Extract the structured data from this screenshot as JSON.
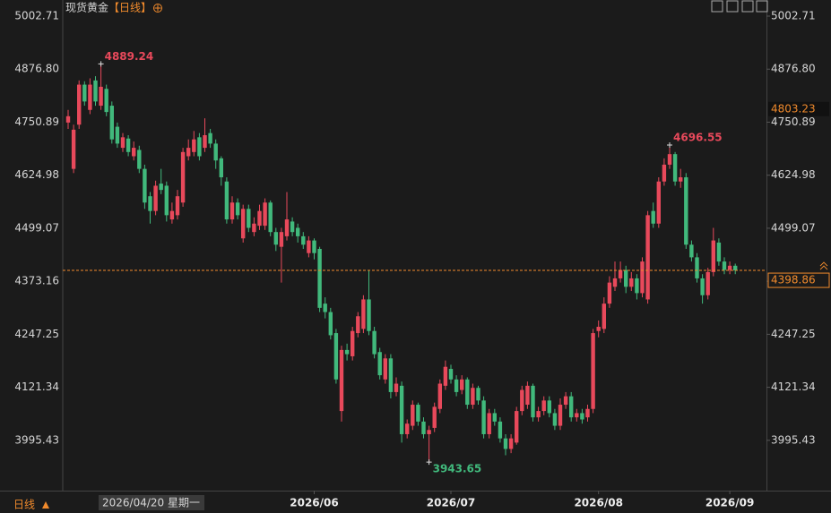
{
  "chart_data": {
    "type": "candlestick",
    "title": "现货黄金",
    "period_label": "【日线】",
    "bottom_period": "日线",
    "crosshair": {
      "date": "2026/04/20 星期一",
      "value": 4803.23
    },
    "last_price": 4398.86,
    "extreme_labels": [
      4889.24,
      4696.55,
      3943.65
    ],
    "up_color": "#e8495b",
    "down_color": "#41b97c",
    "ylim": [
      3876,
      5041
    ],
    "yticks": [
      5002.71,
      {
        "value": 4876.8,
        "label": "4876.80"
      },
      4750.89,
      4624.98,
      4499.07,
      4373.16,
      4247.25,
      4121.34,
      3995.43
    ],
    "categories": [
      null,
      null,
      null,
      null,
      null,
      null,
      null,
      null,
      null,
      null,
      null,
      null,
      null,
      null,
      null,
      null,
      null,
      null,
      null,
      null,
      null,
      null,
      null,
      null,
      null,
      null,
      null,
      null,
      null,
      null,
      null,
      null,
      null,
      null,
      null,
      null,
      null,
      null,
      null,
      null,
      null,
      null,
      null,
      null,
      null,
      "2026/06",
      null,
      null,
      null,
      null,
      null,
      null,
      null,
      null,
      null,
      null,
      null,
      null,
      null,
      null,
      null,
      null,
      null,
      null,
      null,
      null,
      null,
      null,
      null,
      null,
      "2026/07",
      null,
      null,
      null,
      null,
      null,
      null,
      null,
      null,
      null,
      null,
      null,
      null,
      null,
      null,
      null,
      null,
      null,
      null,
      null,
      null,
      null,
      null,
      null,
      null,
      null,
      null,
      "2026/08",
      null,
      null,
      null,
      null,
      null,
      null,
      null,
      null,
      null,
      null,
      null,
      null,
      null,
      null,
      null,
      null,
      null,
      null,
      null,
      null,
      null,
      null,
      null,
      "2026/09",
      null
    ],
    "open": [
      4750,
      4640,
      4745,
      4840,
      4780,
      4850,
      4790,
      4830,
      4790,
      4740,
      4690,
      4712,
      4670,
      4685,
      4640,
      4575,
      4540,
      4605,
      4600,
      4520,
      4530,
      4560,
      4670,
      4680,
      4715,
      4690,
      4725,
      4700,
      4665,
      4610,
      4520,
      4560,
      4475,
      4545,
      4490,
      4505,
      4505,
      4560,
      4490,
      4455,
      4480,
      4515,
      4500,
      4480,
      4440,
      4470,
      4450,
      4320,
      4300,
      4250,
      4065,
      4210,
      4195,
      4250,
      4260,
      4330,
      4255,
      4205,
      4140,
      4190,
      4110,
      4125,
      4010,
      4030,
      4080,
      4040,
      4010,
      4025,
      4070,
      4125,
      4165,
      4140,
      4115,
      4140,
      4080,
      4120,
      4090,
      4010,
      4060,
      4040,
      4000,
      3975,
      3990,
      4065,
      4080,
      4125,
      4050,
      4065,
      4090,
      4060,
      4030,
      4080,
      4100,
      4050,
      4060,
      4050,
      4070,
      4255,
      4260,
      4320,
      4360,
      4380,
      4400,
      4360,
      4380,
      4345,
      4330,
      4540,
      4510,
      4610,
      4650,
      4675,
      4610,
      4620,
      4460,
      4430,
      4380,
      4340,
      4395,
      4465,
      4420,
      4400,
      4410
    ],
    "high": [
      4780,
      4745,
      4850,
      4848,
      4855,
      4860,
      4889.24,
      4840,
      4800,
      4750,
      4725,
      4720,
      4705,
      4695,
      4650,
      4585,
      4612,
      4640,
      4610,
      4560,
      4590,
      4690,
      4710,
      4730,
      4725,
      4760,
      4735,
      4710,
      4670,
      4620,
      4575,
      4570,
      4555,
      4555,
      4525,
      4555,
      4570,
      4565,
      4500,
      4500,
      4585,
      4525,
      4510,
      4490,
      4480,
      4475,
      4455,
      4335,
      4310,
      4260,
      4220,
      4225,
      4265,
      4300,
      4340,
      4400,
      4265,
      4215,
      4200,
      4200,
      4145,
      4135,
      4045,
      4090,
      4085,
      4050,
      4030,
      4085,
      4140,
      4185,
      4175,
      4150,
      4150,
      4145,
      4130,
      4125,
      4100,
      4070,
      4070,
      4050,
      4010,
      4010,
      4075,
      4125,
      4135,
      4130,
      4075,
      4100,
      4100,
      4070,
      4095,
      4110,
      4110,
      4070,
      4070,
      4080,
      4260,
      4280,
      4335,
      4385,
      4420,
      4420,
      4410,
      4395,
      4390,
      4430,
      4540,
      4560,
      4620,
      4665,
      4696.55,
      4680,
      4640,
      4630,
      4470,
      4440,
      4390,
      4405,
      4500,
      4475,
      4430,
      4420,
      4415
    ],
    "low": [
      4735,
      4630,
      4735,
      4790,
      4770,
      4790,
      4780,
      4765,
      4700,
      4690,
      4680,
      4670,
      4660,
      4630,
      4545,
      4510,
      4530,
      4580,
      4515,
      4510,
      4520,
      4550,
      4660,
      4670,
      4660,
      4680,
      4690,
      4640,
      4600,
      4510,
      4510,
      4520,
      4465,
      4490,
      4480,
      4495,
      4495,
      4480,
      4445,
      4370,
      4470,
      4480,
      4465,
      4450,
      4430,
      4425,
      4300,
      4285,
      4235,
      4130,
      4040,
      4185,
      4185,
      4240,
      4250,
      4245,
      4190,
      4140,
      4130,
      4095,
      4100,
      3990,
      4000,
      4020,
      4030,
      4000,
      3943.65,
      4015,
      4060,
      4115,
      4130,
      4100,
      4105,
      4070,
      4070,
      4080,
      4000,
      4000,
      4030,
      3990,
      3960,
      3965,
      3985,
      4055,
      4070,
      4040,
      4040,
      4055,
      4050,
      4020,
      4020,
      4070,
      4040,
      4040,
      4035,
      4040,
      4060,
      4240,
      4250,
      4310,
      4350,
      4370,
      4345,
      4350,
      4330,
      4335,
      4320,
      4500,
      4500,
      4600,
      4640,
      4600,
      4595,
      4450,
      4420,
      4370,
      4320,
      4330,
      4385,
      4410,
      4390,
      4390,
      4390
    ],
    "close": [
      4765,
      4733,
      4840,
      4800,
      4840,
      4800,
      4835,
      4775,
      4710,
      4700,
      4715,
      4680,
      4690,
      4640,
      4560,
      4540,
      4600,
      4590,
      4530,
      4540,
      4575,
      4680,
      4690,
      4710,
      4670,
      4720,
      4700,
      4660,
      4620,
      4520,
      4560,
      4530,
      4545,
      4500,
      4510,
      4540,
      4560,
      4490,
      4460,
      4490,
      4520,
      4490,
      4480,
      4460,
      4470,
      4440,
      4310,
      4300,
      4245,
      4140,
      4210,
      4200,
      4255,
      4290,
      4330,
      4255,
      4200,
      4150,
      4190,
      4110,
      4130,
      4010,
      4035,
      4080,
      4040,
      4010,
      4020,
      4075,
      4130,
      4170,
      4140,
      4110,
      4140,
      4080,
      4120,
      4090,
      4010,
      4060,
      4040,
      4000,
      3975,
      4000,
      4065,
      4115,
      4125,
      4050,
      4065,
      4090,
      4060,
      4030,
      4080,
      4100,
      4050,
      4060,
      4045,
      4070,
      4250,
      4265,
      4320,
      4370,
      4380,
      4400,
      4360,
      4380,
      4345,
      4420,
      4530,
      4510,
      4610,
      4650,
      4675,
      4610,
      4620,
      4460,
      4430,
      4380,
      4340,
      4395,
      4470,
      4420,
      4400,
      4410,
      4398.86
    ]
  }
}
